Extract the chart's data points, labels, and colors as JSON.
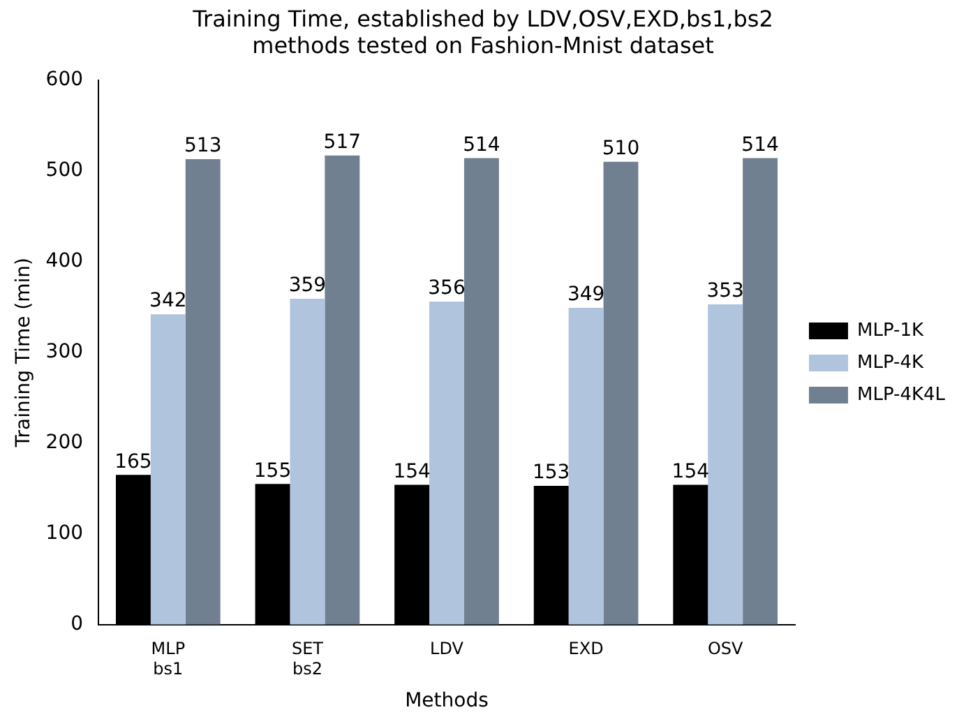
{
  "chart_data": {
    "type": "bar",
    "title": "Training Time, established by LDV,OSV,EXD,bs1,bs2\nmethods tested on Fashion-Mnist dataset",
    "xlabel": "Methods",
    "ylabel": "Training Time (min)",
    "categories": [
      "MLP\nbs1",
      "SET\nbs2",
      "LDV",
      "EXD",
      "OSV"
    ],
    "series": [
      {
        "name": "MLP-1K",
        "color": "#000000",
        "values": [
          165,
          155,
          154,
          153,
          154
        ]
      },
      {
        "name": "MLP-4K",
        "color": "#b0c4de",
        "values": [
          342,
          359,
          356,
          349,
          353
        ]
      },
      {
        "name": "MLP-4K4L",
        "color": "#708090",
        "values": [
          513,
          517,
          514,
          510,
          514
        ]
      }
    ],
    "ylim": [
      0,
      600
    ],
    "yticks": [
      0,
      100,
      200,
      300,
      400,
      500,
      600
    ],
    "grid": false,
    "legend": "right",
    "data_labels": true
  }
}
